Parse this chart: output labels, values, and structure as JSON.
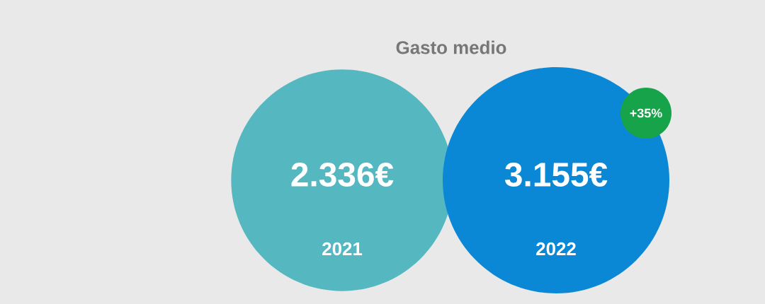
{
  "chart_data": {
    "type": "other",
    "title": "Gasto medio",
    "categories": [
      "2021",
      "2022"
    ],
    "values": [
      2336,
      3155
    ],
    "value_labels": [
      "2.336€",
      "3.155€"
    ],
    "colors": [
      "#55b7c0",
      "#0a88d6"
    ],
    "annotations": [
      "+35%"
    ]
  }
}
